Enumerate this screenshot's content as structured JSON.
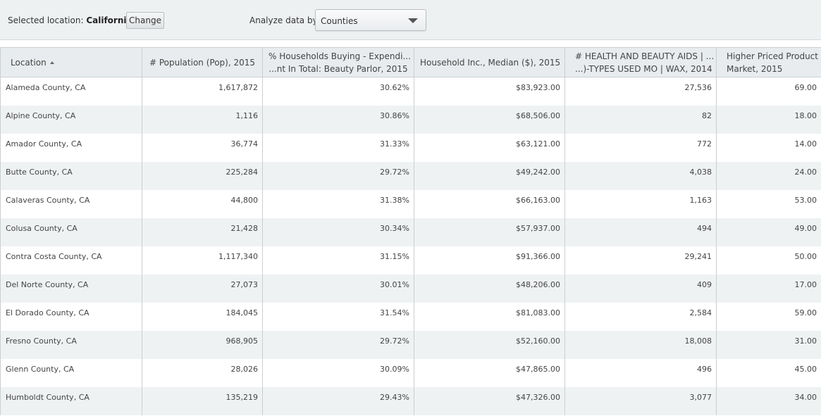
{
  "toolbar": {
    "selected_location_label": "Selected location:",
    "selected_location_value": "California",
    "change_button": "Change",
    "analyze_label": "Analyze data by:",
    "analyze_select_value": "Counties"
  },
  "table": {
    "columns": [
      "Location",
      "# Population (Pop), 2015",
      [
        "% Households Buying - Expendi...",
        "...nt In Total: Beauty Parlor, 2015"
      ],
      "Household Inc., Median ($), 2015",
      [
        "# HEALTH AND BEAUTY AIDS | ...",
        "...)-TYPES USED MO | WAX, 2014"
      ],
      [
        "Higher Priced Product",
        "Market, 2015"
      ]
    ],
    "sorted_column": "Location",
    "sort_direction": "ascending",
    "rows": [
      [
        "Alameda County, CA",
        "1,617,872",
        "30.62%",
        "$83,923.00",
        "27,536",
        "69.00"
      ],
      [
        "Alpine County, CA",
        "1,116",
        "30.86%",
        "$68,506.00",
        "82",
        "18.00"
      ],
      [
        "Amador County, CA",
        "36,774",
        "31.33%",
        "$63,121.00",
        "772",
        "14.00"
      ],
      [
        "Butte County, CA",
        "225,284",
        "29.72%",
        "$49,242.00",
        "4,038",
        "24.00"
      ],
      [
        "Calaveras County, CA",
        "44,800",
        "31.38%",
        "$66,163.00",
        "1,163",
        "53.00"
      ],
      [
        "Colusa County, CA",
        "21,428",
        "30.34%",
        "$57,937.00",
        "494",
        "49.00"
      ],
      [
        "Contra Costa County, CA",
        "1,117,340",
        "31.15%",
        "$91,366.00",
        "29,241",
        "50.00"
      ],
      [
        "Del Norte County, CA",
        "27,073",
        "30.01%",
        "$48,206.00",
        "409",
        "17.00"
      ],
      [
        "El Dorado County, CA",
        "184,045",
        "31.54%",
        "$81,083.00",
        "2,584",
        "59.00"
      ],
      [
        "Fresno County, CA",
        "968,905",
        "29.72%",
        "$52,160.00",
        "18,008",
        "31.00"
      ],
      [
        "Glenn County, CA",
        "28,026",
        "30.09%",
        "$47,865.00",
        "496",
        "45.00"
      ],
      [
        "Humboldt County, CA",
        "135,219",
        "29.43%",
        "$47,326.00",
        "3,077",
        "34.00"
      ]
    ]
  }
}
